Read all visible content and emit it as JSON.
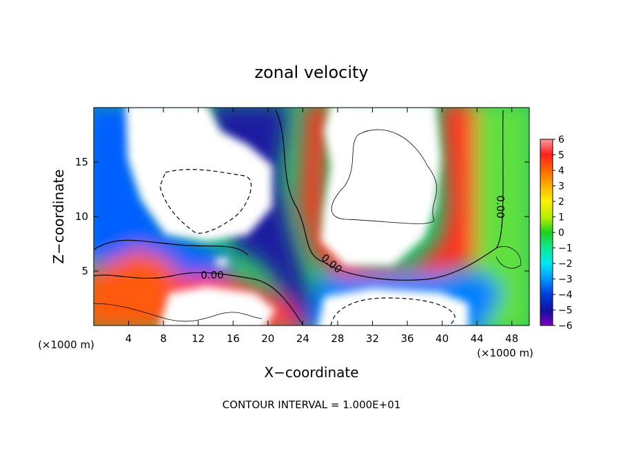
{
  "chart_data": {
    "type": "heatmap",
    "title": "zonal velocity",
    "xlabel": "X−coordinate",
    "ylabel": "Z−coordinate",
    "x_unit_left": "(×1000 m)",
    "x_unit_right": "(×1000 m)",
    "xlim": [
      0,
      50
    ],
    "ylim": [
      0,
      20
    ],
    "x_ticks": [
      4,
      8,
      12,
      16,
      20,
      24,
      28,
      32,
      36,
      40,
      44,
      48
    ],
    "y_ticks": [
      5,
      10,
      15
    ],
    "colorbar": {
      "levels": [
        6,
        5,
        4,
        3,
        2,
        1,
        0,
        -1,
        -2,
        -3,
        -4,
        -5,
        -6
      ],
      "labels": [
        "6",
        "5",
        "4",
        "3",
        "2",
        "1",
        "0",
        "−1",
        "−2",
        "−3",
        "−4",
        "−5",
        "−6"
      ],
      "colors": [
        "#ff9a9a",
        "#ff2020",
        "#ff6a00",
        "#ffb000",
        "#ffee00",
        "#b4f000",
        "#20d020",
        "#10e890",
        "#00e8f0",
        "#0096ff",
        "#0040e0",
        "#1010a0",
        "#8000c0"
      ]
    },
    "contour_labels": [
      "0.00",
      "0.00",
      "0.00"
    ],
    "saturated_regions": [
      "upper-left (<−6, dashed)",
      "upper-right (>6, solid)",
      "bottom-center (<−6, dashed)",
      "bottom-left (>6, solid)"
    ],
    "footer": "CONTOUR INTERVAL = 1.000E+01"
  }
}
